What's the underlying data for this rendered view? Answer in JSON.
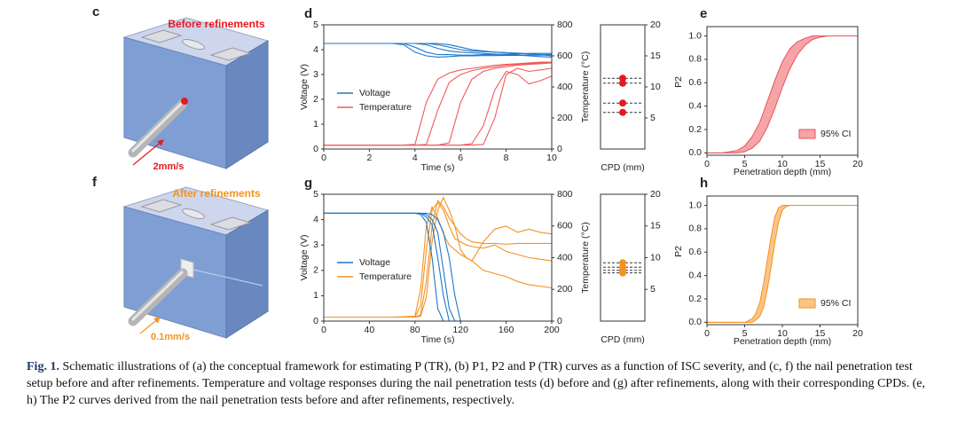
{
  "schematics": [
    {
      "label": "c",
      "title": "Before refinements",
      "speed": "2mm/s"
    },
    {
      "label": "f",
      "title": "After refinements",
      "speed": "0.1mm/s"
    }
  ],
  "chart_data": [
    {
      "type": "dual-line",
      "label": "d",
      "xlabel": "Time (s)",
      "ylabel": "Voltage (V)",
      "y2label": "Temperature (°C)",
      "xlim": [
        0,
        10
      ],
      "xticks": [
        0,
        2,
        4,
        6,
        8,
        10
      ],
      "ylim": [
        0,
        5
      ],
      "yticks": [
        0,
        1,
        2,
        3,
        4,
        5
      ],
      "y2lim": [
        0,
        800
      ],
      "y2ticks": [
        0,
        200,
        400,
        600,
        800
      ],
      "x": [
        0,
        1,
        2,
        3,
        3.5,
        4,
        4.5,
        5,
        5.5,
        6,
        6.5,
        7,
        7.5,
        8,
        8.5,
        9,
        9.5,
        10
      ],
      "series": [
        {
          "name": "Voltage",
          "color": "#1f77c9",
          "axis": "y",
          "runs": [
            [
              4.25,
              4.25,
              4.25,
              4.25,
              4.2,
              3.9,
              3.75,
              3.7,
              3.72,
              3.75,
              3.75,
              3.76,
              3.76,
              3.77,
              3.77,
              3.78,
              3.78,
              3.8
            ],
            [
              4.25,
              4.25,
              4.25,
              4.25,
              4.25,
              4.1,
              3.9,
              3.8,
              3.8,
              3.78,
              3.78,
              3.8,
              3.8,
              3.82,
              3.82,
              3.85,
              3.85,
              3.85
            ],
            [
              4.25,
              4.25,
              4.25,
              4.25,
              4.25,
              4.25,
              4.2,
              4.05,
              3.95,
              3.9,
              3.88,
              3.85,
              3.82,
              3.8,
              3.78,
              3.75,
              3.72,
              3.7
            ],
            [
              4.25,
              4.25,
              4.25,
              4.25,
              4.25,
              4.25,
              4.25,
              4.2,
              4.1,
              4.0,
              3.95,
              3.92,
              3.9,
              3.88,
              3.85,
              3.82,
              3.8,
              3.8
            ],
            [
              4.25,
              4.25,
              4.25,
              4.25,
              4.25,
              4.25,
              4.25,
              4.25,
              4.2,
              4.1,
              4.0,
              3.95,
              3.9,
              3.88,
              3.86,
              3.84,
              3.8,
              3.75
            ]
          ]
        },
        {
          "name": "Temperature",
          "color": "#f0595c",
          "axis": "y2",
          "runs": [
            [
              25,
              25,
              25,
              25,
              25,
              30,
              300,
              450,
              490,
              510,
              520,
              530,
              540,
              545,
              550,
              555,
              560,
              560
            ],
            [
              25,
              25,
              25,
              25,
              25,
              25,
              30,
              250,
              430,
              480,
              505,
              520,
              530,
              540,
              545,
              550,
              555,
              555
            ],
            [
              25,
              25,
              25,
              25,
              25,
              25,
              25,
              25,
              40,
              300,
              450,
              500,
              520,
              530,
              540,
              545,
              550,
              555
            ],
            [
              25,
              25,
              25,
              25,
              25,
              25,
              25,
              25,
              25,
              25,
              35,
              150,
              380,
              500,
              480,
              420,
              440,
              470
            ],
            [
              25,
              25,
              25,
              25,
              25,
              25,
              25,
              25,
              25,
              25,
              25,
              30,
              200,
              480,
              520,
              500,
              510,
              520
            ]
          ]
        }
      ]
    },
    {
      "type": "dot",
      "xlabel": "CPD (mm)",
      "ylim": [
        0,
        20
      ],
      "yticks": [
        5,
        10,
        15,
        20
      ],
      "color": "#e8191e",
      "values": [
        11.4,
        10.6,
        7.4,
        5.9
      ]
    },
    {
      "type": "band",
      "label": "e",
      "xlabel": "Penetration depth (mm)",
      "ylabel": "P2",
      "xlim": [
        0,
        20
      ],
      "xticks": [
        0,
        5,
        10,
        15,
        20
      ],
      "ylim": [
        -0.02,
        1.08
      ],
      "yticks": [
        {
          "value": 0,
          "label": "0.0"
        },
        0.2,
        0.4,
        0.6,
        0.8,
        {
          "value": 1,
          "label": "1.0"
        }
      ],
      "x": [
        0,
        2,
        4,
        5,
        6,
        7,
        8,
        9,
        10,
        11,
        12,
        13,
        14,
        15,
        16,
        18,
        20
      ],
      "series": [
        {
          "name": "95% CI",
          "color": "#e8555a",
          "fill": "#f6a4a8",
          "lower": [
            0,
            0,
            0,
            0.01,
            0.04,
            0.1,
            0.22,
            0.38,
            0.56,
            0.72,
            0.84,
            0.92,
            0.97,
            0.99,
            1,
            1,
            1
          ],
          "upper": [
            0,
            0,
            0.02,
            0.06,
            0.14,
            0.26,
            0.44,
            0.62,
            0.78,
            0.89,
            0.95,
            0.98,
            1,
            1,
            1,
            1,
            1
          ]
        }
      ]
    },
    {
      "type": "dual-line",
      "label": "g",
      "xlabel": "Time (s)",
      "ylabel": "Voltage (V)",
      "y2label": "Temperature (°C)",
      "xlim": [
        0,
        200
      ],
      "xticks": [
        0,
        40,
        80,
        120,
        160,
        200
      ],
      "ylim": [
        0,
        5
      ],
      "yticks": [
        0,
        1,
        2,
        3,
        4,
        5
      ],
      "y2lim": [
        0,
        800
      ],
      "y2ticks": [
        0,
        200,
        400,
        600,
        800
      ],
      "x": [
        0,
        20,
        40,
        60,
        80,
        85,
        90,
        95,
        100,
        105,
        110,
        115,
        120,
        125,
        130,
        140,
        150,
        160,
        170,
        180,
        190,
        200
      ],
      "series": [
        {
          "name": "Voltage",
          "color": "#1f77c9",
          "axis": "y",
          "runs": [
            [
              4.25,
              4.25,
              4.25,
              4.25,
              4.25,
              4.2,
              3.9,
              2.5,
              0.5,
              0,
              null,
              null,
              null,
              null,
              null,
              null,
              null,
              null,
              null,
              null,
              null,
              null
            ],
            [
              4.25,
              4.25,
              4.25,
              4.25,
              4.25,
              4.25,
              4.1,
              3.8,
              2.5,
              1.0,
              0,
              null,
              null,
              null,
              null,
              null,
              null,
              null,
              null,
              null,
              null,
              null
            ],
            [
              4.25,
              4.25,
              4.25,
              4.25,
              4.25,
              4.25,
              4.2,
              4.0,
              3.5,
              2.0,
              0.5,
              0,
              null,
              null,
              null,
              null,
              null,
              null,
              null,
              null,
              null,
              null
            ],
            [
              4.25,
              4.25,
              4.25,
              4.25,
              4.25,
              4.25,
              4.25,
              4.2,
              4.0,
              3.5,
              2.5,
              1.0,
              0,
              null,
              null,
              null,
              null,
              null,
              null,
              null,
              null,
              null
            ]
          ]
        },
        {
          "name": "Temperature",
          "color": "#f5921e",
          "axis": "y2",
          "runs": [
            [
              25,
              25,
              25,
              25,
              30,
              200,
              600,
              720,
              650,
              550,
              480,
              450,
              420,
              400,
              380,
              320,
              300,
              280,
              250,
              230,
              220,
              210
            ],
            [
              25,
              25,
              25,
              25,
              25,
              100,
              450,
              700,
              750,
              700,
              600,
              520,
              500,
              480,
              470,
              460,
              480,
              440,
              420,
              400,
              390,
              380
            ],
            [
              25,
              25,
              25,
              25,
              25,
              40,
              250,
              600,
              760,
              720,
              650,
              600,
              550,
              520,
              500,
              490,
              490,
              485,
              490,
              490,
              490,
              490
            ],
            [
              25,
              25,
              25,
              25,
              25,
              30,
              150,
              500,
              700,
              780,
              700,
              600,
              450,
              400,
              380,
              500,
              580,
              600,
              560,
              580,
              560,
              550
            ]
          ]
        }
      ]
    },
    {
      "type": "dot",
      "xlabel": "CPD (mm)",
      "ylim": [
        0,
        20
      ],
      "yticks": [
        5,
        10,
        15,
        20
      ],
      "color": "#f5921e",
      "values": [
        9.2,
        8.5,
        8.0,
        7.6
      ]
    },
    {
      "type": "band",
      "label": "h",
      "xlabel": "Penetration depth (mm)",
      "ylabel": "P2",
      "xlim": [
        0,
        20
      ],
      "xticks": [
        0,
        5,
        10,
        15,
        20
      ],
      "ylim": [
        -0.02,
        1.08
      ],
      "yticks": [
        {
          "value": 0,
          "label": "0.0"
        },
        0.2,
        0.4,
        0.6,
        0.8,
        {
          "value": 1,
          "label": "1.0"
        }
      ],
      "x": [
        0,
        5,
        6,
        6.5,
        7,
        7.5,
        8,
        8.5,
        9,
        9.5,
        10,
        10.5,
        11,
        15,
        20
      ],
      "series": [
        {
          "name": "95% CI",
          "color": "#f5921e",
          "fill": "#fbc487",
          "lower": [
            0,
            0,
            0,
            0.02,
            0.05,
            0.13,
            0.28,
            0.47,
            0.68,
            0.86,
            0.96,
            0.99,
            1,
            1,
            1
          ],
          "upper": [
            0,
            0,
            0.03,
            0.08,
            0.17,
            0.33,
            0.53,
            0.73,
            0.9,
            0.98,
            1,
            1,
            1,
            1,
            1
          ]
        }
      ]
    }
  ],
  "caption": {
    "label": "Fig. 1.",
    "text": "Schematic illustrations of (a) the conceptual framework for estimating P (TR), (b) P1, P2 and P (TR) curves as a function of ISC severity, and (c, f) the nail penetration test setup before and after refinements. Temperature and voltage responses during the nail penetration tests (d) before and (g) after refinements, along with their corresponding CPDs. (e, h) The P2 curves derived from the nail penetration tests before and after refinements, respectively."
  }
}
